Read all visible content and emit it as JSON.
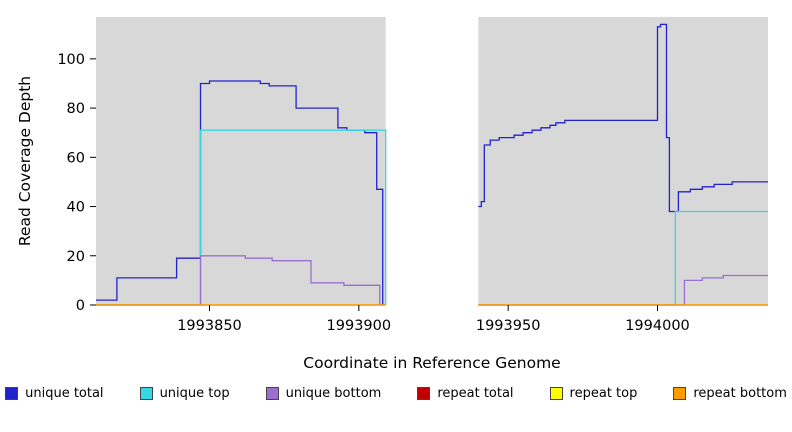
{
  "chart_data": {
    "type": "line",
    "step": true,
    "title": "",
    "xlabel": "Coordinate in Reference Genome",
    "ylabel": "Read Coverage Depth",
    "xlim": [
      1993812,
      1994037
    ],
    "ylim": [
      0,
      117
    ],
    "xticks": [
      1993850,
      1993900,
      1993950,
      1994000
    ],
    "yticks": [
      0,
      20,
      40,
      60,
      80,
      100
    ],
    "plot_bg": "#d8d8d8",
    "grid": false,
    "legend_position": "bottom",
    "gap_region": [
      1993909,
      1993940
    ],
    "series": [
      {
        "name": "unique total",
        "color": "#2222cd",
        "segments": [
          [
            [
              1993812,
              2
            ],
            [
              1993819,
              11
            ],
            [
              1993839,
              19
            ],
            [
              1993847,
              90
            ],
            [
              1993850,
              91
            ],
            [
              1993867,
              90
            ],
            [
              1993870,
              89
            ],
            [
              1993879,
              80
            ],
            [
              1993893,
              72
            ],
            [
              1993896,
              71
            ],
            [
              1993902,
              70
            ],
            [
              1993906,
              47
            ],
            [
              1993908,
              0
            ]
          ],
          [
            [
              1993940,
              40
            ],
            [
              1993941,
              42
            ],
            [
              1993942,
              65
            ],
            [
              1993944,
              67
            ],
            [
              1993947,
              68
            ],
            [
              1993952,
              69
            ],
            [
              1993955,
              70
            ],
            [
              1993958,
              71
            ],
            [
              1993961,
              72
            ],
            [
              1993964,
              73
            ],
            [
              1993966,
              74
            ],
            [
              1993969,
              75
            ],
            [
              1994000,
              113
            ],
            [
              1994001,
              114
            ],
            [
              1994003,
              68
            ],
            [
              1994004,
              38
            ],
            [
              1994007,
              46
            ],
            [
              1994011,
              47
            ],
            [
              1994015,
              48
            ],
            [
              1994019,
              49
            ],
            [
              1994025,
              50
            ],
            [
              1994037,
              50
            ]
          ]
        ]
      },
      {
        "name": "unique top",
        "color": "#35d8e2",
        "segments": [
          [
            [
              1993812,
              0
            ],
            [
              1993847,
              71
            ],
            [
              1993909,
              0
            ]
          ],
          [
            [
              1993940,
              0
            ],
            [
              1994006,
              38
            ],
            [
              1994037,
              38
            ]
          ]
        ]
      },
      {
        "name": "unique bottom",
        "color": "#9b6fd0",
        "segments": [
          [
            [
              1993812,
              0
            ],
            [
              1993847,
              20
            ],
            [
              1993862,
              19
            ],
            [
              1993871,
              18
            ],
            [
              1993884,
              9
            ],
            [
              1993895,
              8
            ],
            [
              1993907,
              0
            ]
          ],
          [
            [
              1993940,
              0
            ],
            [
              1994009,
              10
            ],
            [
              1994015,
              11
            ],
            [
              1994022,
              12
            ],
            [
              1994037,
              12
            ]
          ]
        ]
      },
      {
        "name": "repeat total",
        "color": "#c00000",
        "segments": [
          [
            [
              1993812,
              0
            ],
            [
              1993909,
              0
            ]
          ],
          [
            [
              1993940,
              0
            ],
            [
              1994037,
              0
            ]
          ]
        ]
      },
      {
        "name": "repeat top",
        "color": "#ffff00",
        "segments": [
          [
            [
              1993812,
              0
            ],
            [
              1993909,
              0
            ]
          ],
          [
            [
              1993940,
              0
            ],
            [
              1994037,
              0
            ]
          ]
        ]
      },
      {
        "name": "repeat bottom",
        "color": "#ff9d00",
        "segments": [
          [
            [
              1993812,
              0
            ],
            [
              1993909,
              0
            ]
          ],
          [
            [
              1993940,
              0
            ],
            [
              1994037,
              0
            ]
          ]
        ]
      }
    ],
    "legend": [
      {
        "label": "unique total",
        "color": "#2222cd"
      },
      {
        "label": "unique top",
        "color": "#35d8e2"
      },
      {
        "label": "unique bottom",
        "color": "#9b6fd0"
      },
      {
        "label": "repeat total",
        "color": "#c00000"
      },
      {
        "label": "repeat top",
        "color": "#ffff00"
      },
      {
        "label": "repeat bottom",
        "color": "#ff9d00"
      }
    ]
  }
}
